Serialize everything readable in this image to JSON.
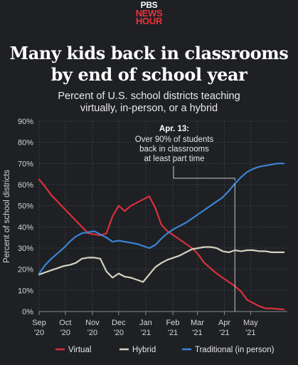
{
  "logo": {
    "line1": "PBS",
    "line2": "NEWS",
    "line3": "HOUR"
  },
  "title_line1": "Many kids back in classrooms",
  "title_line2": "by end of school year",
  "subtitle_line1": "Percent of U.S. school districts teaching",
  "subtitle_line2": "virtually, in-person, or a hybrid",
  "colors": {
    "virtual": "#d9303c",
    "hybrid": "#d2d2c0",
    "traditional": "#3a85d6",
    "background": "#1e2024"
  },
  "chart_data": {
    "type": "line",
    "title": "Many kids back in classrooms by end of school year",
    "subtitle": "Percent of U.S. school districts teaching virtually, in-person, or a hybrid",
    "ylabel": "Percent of school districts",
    "xlabel": "",
    "ylim": [
      0,
      90
    ],
    "yticks": [
      "0%",
      "10%",
      "20%",
      "30%",
      "40%",
      "50%",
      "60%",
      "70%",
      "80%",
      "90%"
    ],
    "xlim": [
      "2020-09-01",
      "2021-06-12"
    ],
    "xticks": [
      {
        "date": "2020-09-01",
        "line1": "Sep",
        "line2": "'20"
      },
      {
        "date": "2020-10-01",
        "line1": "Oct",
        "line2": "'20"
      },
      {
        "date": "2020-11-01",
        "line1": "Nov",
        "line2": "'20"
      },
      {
        "date": "2020-12-01",
        "line1": "Dec",
        "line2": "'20"
      },
      {
        "date": "2021-01-01",
        "line1": "Jan",
        "line2": "'21"
      },
      {
        "date": "2021-02-01",
        "line1": "Feb",
        "line2": "'21"
      },
      {
        "date": "2021-03-01",
        "line1": "Mar",
        "line2": "'21"
      },
      {
        "date": "2021-04-01",
        "line1": "Apr",
        "line2": "'21"
      },
      {
        "date": "2021-05-01",
        "line1": "May",
        "line2": "'21"
      }
    ],
    "grid": true,
    "legend_position": "bottom",
    "series": [
      {
        "name": "Virtual",
        "x": [
          "2020-09-01",
          "2020-09-08",
          "2020-09-15",
          "2020-09-22",
          "2020-09-29",
          "2020-10-06",
          "2020-10-13",
          "2020-10-20",
          "2020-10-27",
          "2020-11-03",
          "2020-11-10",
          "2020-11-17",
          "2020-11-24",
          "2020-12-01",
          "2020-12-08",
          "2020-12-15",
          "2020-12-22",
          "2020-12-29",
          "2021-01-05",
          "2021-01-12",
          "2021-01-19",
          "2021-01-26",
          "2021-02-02",
          "2021-02-09",
          "2021-02-16",
          "2021-02-23",
          "2021-03-02",
          "2021-03-09",
          "2021-03-16",
          "2021-03-23",
          "2021-03-30",
          "2021-04-06",
          "2021-04-13",
          "2021-04-20",
          "2021-04-27",
          "2021-05-04",
          "2021-05-11",
          "2021-05-18",
          "2021-05-25",
          "2021-06-01",
          "2021-06-08"
        ],
        "values": [
          62.5,
          59,
          55,
          52,
          49,
          46,
          43,
          40,
          37,
          36.5,
          36,
          37,
          45,
          50,
          47.5,
          50,
          51.5,
          53,
          54.5,
          49,
          41,
          38,
          36,
          34,
          32,
          30,
          27,
          23,
          20.5,
          18,
          16,
          14,
          12,
          9.5,
          5.5,
          4,
          2.5,
          1.5,
          1.5,
          1.2,
          1
        ]
      },
      {
        "name": "Hybrid",
        "x": [
          "2020-09-01",
          "2020-09-08",
          "2020-09-15",
          "2020-09-22",
          "2020-09-29",
          "2020-10-06",
          "2020-10-13",
          "2020-10-20",
          "2020-10-27",
          "2020-11-03",
          "2020-11-10",
          "2020-11-17",
          "2020-11-24",
          "2020-12-01",
          "2020-12-08",
          "2020-12-15",
          "2020-12-22",
          "2020-12-29",
          "2021-01-05",
          "2021-01-12",
          "2021-01-19",
          "2021-01-26",
          "2021-02-02",
          "2021-02-09",
          "2021-02-16",
          "2021-02-23",
          "2021-03-02",
          "2021-03-09",
          "2021-03-16",
          "2021-03-23",
          "2021-03-30",
          "2021-04-06",
          "2021-04-13",
          "2021-04-20",
          "2021-04-27",
          "2021-05-04",
          "2021-05-11",
          "2021-05-18",
          "2021-05-25",
          "2021-06-01",
          "2021-06-08"
        ],
        "values": [
          17.5,
          18.5,
          19.5,
          20.5,
          21.5,
          22,
          23,
          25,
          25.5,
          25.5,
          25,
          19,
          16,
          18,
          16.5,
          16,
          15,
          14,
          17.5,
          21,
          23,
          24.5,
          25.5,
          26.5,
          28,
          29.5,
          30,
          30.5,
          30.5,
          30,
          28.5,
          28,
          29,
          28.5,
          29,
          29,
          28.5,
          28.5,
          28,
          28,
          28
        ]
      },
      {
        "name": "Traditional (in person)",
        "x": [
          "2020-09-01",
          "2020-09-08",
          "2020-09-15",
          "2020-09-22",
          "2020-09-29",
          "2020-10-06",
          "2020-10-13",
          "2020-10-20",
          "2020-10-27",
          "2020-11-03",
          "2020-11-10",
          "2020-11-17",
          "2020-11-24",
          "2020-12-01",
          "2020-12-08",
          "2020-12-15",
          "2020-12-22",
          "2020-12-29",
          "2021-01-05",
          "2021-01-12",
          "2021-01-19",
          "2021-01-26",
          "2021-02-02",
          "2021-02-09",
          "2021-02-16",
          "2021-02-23",
          "2021-03-02",
          "2021-03-09",
          "2021-03-16",
          "2021-03-23",
          "2021-03-30",
          "2021-04-06",
          "2021-04-13",
          "2021-04-20",
          "2021-04-27",
          "2021-05-04",
          "2021-05-11",
          "2021-05-18",
          "2021-05-25",
          "2021-06-01",
          "2021-06-08"
        ],
        "values": [
          18,
          22,
          25,
          27.5,
          30,
          33,
          35.5,
          37,
          37.5,
          38,
          36.5,
          35,
          33,
          33.5,
          33,
          32.5,
          32,
          31,
          30,
          31.5,
          34.5,
          37,
          39,
          40.5,
          42,
          44,
          46,
          48,
          50,
          52,
          54,
          57,
          60.5,
          63.5,
          66,
          67.5,
          68.5,
          69,
          69.5,
          70,
          70
        ]
      }
    ],
    "annotation": {
      "date": "2021-04-13",
      "value": 60.5,
      "label_bold": "Apr. 13:",
      "label_lines": [
        "Over 90% of students",
        "back in classrooms",
        "at least part time"
      ]
    }
  }
}
